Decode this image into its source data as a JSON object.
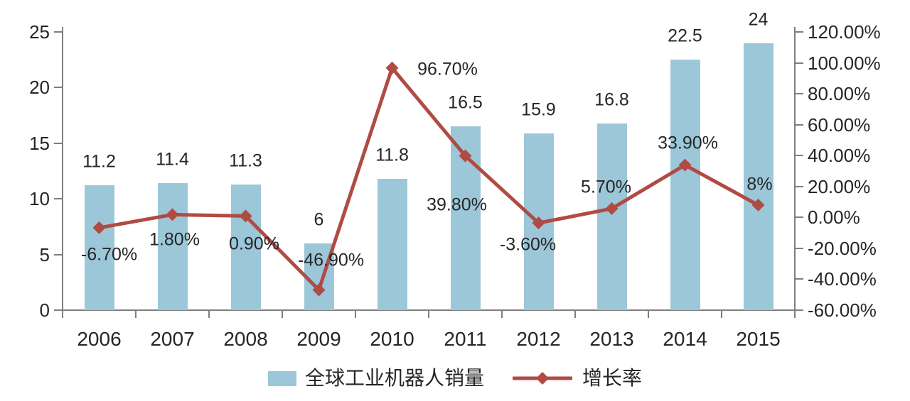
{
  "chart_data": {
    "type": "bar",
    "subtype": "bar-line-combo",
    "title": "",
    "categories": [
      "2006",
      "2007",
      "2008",
      "2009",
      "2010",
      "2011",
      "2012",
      "2013",
      "2014",
      "2015"
    ],
    "series": [
      {
        "name": "全球工业机器人销量",
        "type": "bar",
        "axis": "left",
        "values": [
          11.2,
          11.4,
          11.3,
          6,
          11.8,
          16.5,
          15.9,
          16.8,
          22.5,
          24
        ],
        "labels": [
          "11.2",
          "11.4",
          "11.3",
          "6",
          "11.8",
          "16.5",
          "15.9",
          "16.8",
          "22.5",
          "24"
        ],
        "color": "#9cc7d9"
      },
      {
        "name": "增长率",
        "type": "line",
        "axis": "right",
        "values": [
          -6.7,
          1.8,
          0.9,
          -46.9,
          96.7,
          39.8,
          -3.6,
          5.7,
          33.9,
          8
        ],
        "labels": [
          "-6.70%",
          "1.80%",
          "0.90%",
          "-46.90%",
          "96.70%",
          "39.80%",
          "-3.60%",
          "5.70%",
          "33.90%",
          "8%"
        ],
        "label_offsets": [
          [
            14,
            38
          ],
          [
            3,
            36
          ],
          [
            12,
            40
          ],
          [
            17,
            -41
          ],
          [
            78,
            2
          ],
          [
            -12,
            69
          ],
          [
            -15,
            31
          ],
          [
            -8,
            -30
          ],
          [
            4,
            -31
          ],
          [
            2,
            -29
          ]
        ],
        "color": "#b04b44"
      }
    ],
    "left_axis": {
      "min": 0,
      "max": 25,
      "tick_step": 5,
      "tick_values": [
        0,
        5,
        10,
        15,
        20,
        25
      ],
      "tick_labels": [
        "0",
        "5",
        "10",
        "15",
        "20",
        "25"
      ]
    },
    "right_axis": {
      "min": -60,
      "max": 120,
      "tick_step": 20,
      "tick_values": [
        120,
        100,
        80,
        60,
        40,
        20,
        0,
        -20,
        -40,
        -60
      ],
      "tick_labels": [
        "120.00%",
        "100.00%",
        "80.00%",
        "60.00%",
        "40.00%",
        "20.00%",
        "0.00%",
        "-20.00%",
        "-40.00%",
        "-60.00%"
      ]
    },
    "legend": {
      "position": "bottom-center",
      "items": [
        {
          "label": "全球工业机器人销量",
          "marker": "bar-swatch"
        },
        {
          "label": "增长率",
          "marker": "line-with-diamond"
        }
      ]
    },
    "grid": false,
    "colors": {
      "bar": "#9cc7d9",
      "line": "#b04b44",
      "axis": "#7f7f7f",
      "text": "#262626",
      "background": "#ffffff"
    }
  }
}
